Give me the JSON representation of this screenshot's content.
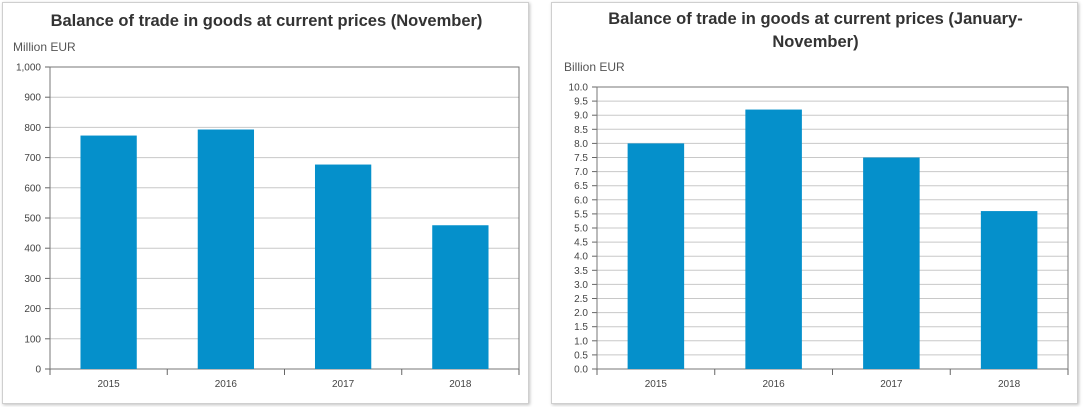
{
  "colors": {
    "bar": "#0590cb"
  },
  "chart_data": [
    {
      "type": "bar",
      "title": "Balance of trade in goods at current prices (November)",
      "title_lines": [
        "Balance of trade in goods at current prices (November)"
      ],
      "ylabel": "Million EUR",
      "categories": [
        "2015",
        "2016",
        "2017",
        "2018"
      ],
      "values": [
        773,
        793,
        677,
        476
      ],
      "ylim": [
        0,
        1000
      ],
      "yticks": [
        0,
        100,
        200,
        300,
        400,
        500,
        600,
        700,
        800,
        900,
        1000
      ],
      "ytick_labels": [
        "0",
        "100",
        "200",
        "300",
        "400",
        "500",
        "600",
        "700",
        "800",
        "900",
        "1,000"
      ],
      "grid": true,
      "legend": "none"
    },
    {
      "type": "bar",
      "title": "Balance of trade in goods at current prices (January-November)",
      "title_lines": [
        "Balance of trade in goods at current prices (January-",
        "November)"
      ],
      "ylabel": "Billion EUR",
      "categories": [
        "2015",
        "2016",
        "2017",
        "2018"
      ],
      "values": [
        8.0,
        9.2,
        7.5,
        5.6
      ],
      "ylim": [
        0,
        10
      ],
      "yticks": [
        0,
        0.5,
        1,
        1.5,
        2,
        2.5,
        3,
        3.5,
        4,
        4.5,
        5,
        5.5,
        6,
        6.5,
        7,
        7.5,
        8,
        8.5,
        9,
        9.5,
        10
      ],
      "ytick_labels": [
        "0.0",
        "0.5",
        "1.0",
        "1.5",
        "2.0",
        "2.5",
        "3.0",
        "3.5",
        "4.0",
        "4.5",
        "5.0",
        "5.5",
        "6.0",
        "6.5",
        "7.0",
        "7.5",
        "8.0",
        "8.5",
        "9.0",
        "9.5",
        "10.0"
      ],
      "grid": true,
      "legend": "none"
    }
  ]
}
